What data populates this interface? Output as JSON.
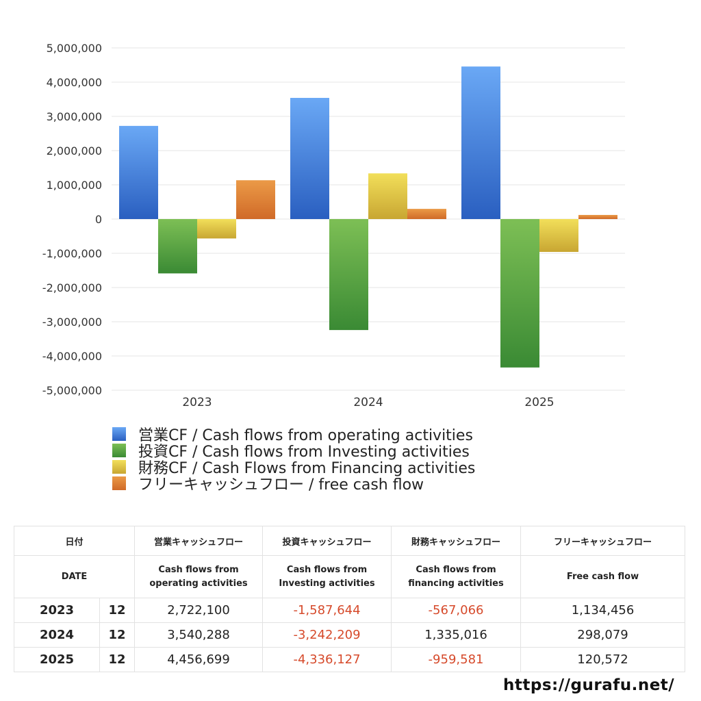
{
  "chart_data": {
    "type": "bar",
    "categories": [
      "2023",
      "2024",
      "2025"
    ],
    "series": [
      {
        "name": "営業CF / Cash flows from operating activities",
        "values": [
          2722100,
          3540288,
          4456699
        ],
        "color_top": "#6aa8f5",
        "color_bottom": "#2a5fc0"
      },
      {
        "name": "投資CF / Cash flows from Investing activities",
        "values": [
          -1587644,
          -3242209,
          -4336127
        ],
        "color_top": "#7dbf55",
        "color_bottom": "#3a8a34"
      },
      {
        "name": "財務CF / Cash Flows from Financing activities",
        "values": [
          -567066,
          1335016,
          -959581
        ],
        "color_top": "#f2df5a",
        "color_bottom": "#c8a632"
      },
      {
        "name": "フリーキャッシュフロー / free cash flow",
        "values": [
          1134456,
          298079,
          120572
        ],
        "color_top": "#eb9a47",
        "color_bottom": "#d06a28"
      }
    ],
    "ylim": [
      -5000000,
      5000000
    ],
    "yticks": [
      "5,000,000",
      "4,000,000",
      "3,000,000",
      "2,000,000",
      "1,000,000",
      "0",
      "-1,000,000",
      "-2,000,000",
      "-3,000,000",
      "-4,000,000",
      "-5,000,000"
    ],
    "ytick_values": [
      5000000,
      4000000,
      3000000,
      2000000,
      1000000,
      0,
      -1000000,
      -2000000,
      -3000000,
      -4000000,
      -5000000
    ],
    "grid": true,
    "legend_position": "bottom"
  },
  "table": {
    "header_row1": {
      "date": "日付",
      "operating": "営業キャッシュフロー",
      "investing": "投資キャッシュフロー",
      "financing": "財務キャッシュフロー",
      "free": "フリーキャッシュフロー"
    },
    "header_row2": {
      "date": "DATE",
      "operating_1": "Cash flows from",
      "operating_2": "operating activities",
      "investing_1": "Cash flows from",
      "investing_2": "Investing activities",
      "financing_1": "Cash flows from",
      "financing_2": "financing activities",
      "free": "Free cash flow"
    },
    "rows": [
      {
        "year": "2023",
        "month": "12",
        "operating": "2,722,100",
        "investing": "-1,587,644",
        "financing": "-567,066",
        "free": "1,134,456"
      },
      {
        "year": "2024",
        "month": "12",
        "operating": "3,540,288",
        "investing": "-3,242,209",
        "financing": "1,335,016",
        "free": "298,079"
      },
      {
        "year": "2025",
        "month": "12",
        "operating": "4,456,699",
        "investing": "-4,336,127",
        "financing": "-959,581",
        "free": "120,572"
      }
    ],
    "negative_color": "#d64a2b"
  },
  "footer": {
    "url": "https://gurafu.net/"
  }
}
